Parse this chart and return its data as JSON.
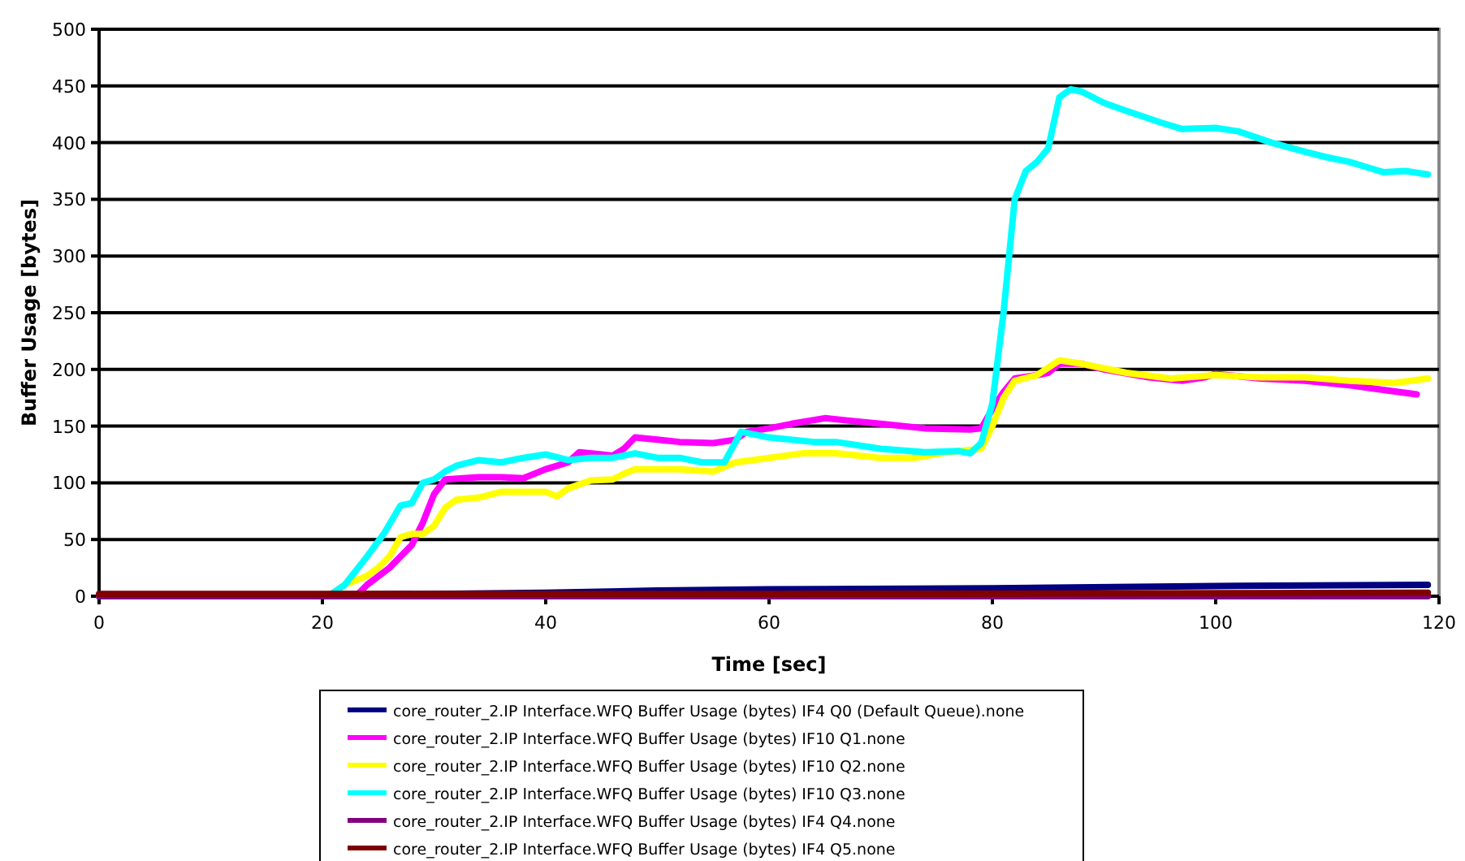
{
  "chart_data": {
    "type": "line",
    "xlabel": "Time [sec]",
    "ylabel": "Buffer Usage [bytes]",
    "xlim": [
      0,
      120
    ],
    "xticks": [
      0,
      20,
      40,
      60,
      80,
      100,
      120
    ],
    "ylim": [
      0,
      500
    ],
    "yticks": [
      0,
      50,
      100,
      150,
      200,
      250,
      300,
      350,
      400,
      450,
      500
    ],
    "grid": "y",
    "legend": "bottom",
    "line_style": "solid",
    "series": [
      {
        "name": "core_router_2.IP Interface.WFQ Buffer Usage (bytes) IF4 Q0 (Default Queue).none",
        "color": "#000080",
        "x": [
          0,
          30,
          40,
          50,
          60,
          80,
          100,
          119
        ],
        "values": [
          0,
          2,
          3,
          5,
          6,
          7,
          9,
          10
        ]
      },
      {
        "name": "core_router_2.IP Interface.WFQ Buffer Usage (bytes) IF10 Q1.none",
        "color": "#ff00ff",
        "x": [
          0,
          23,
          24,
          26,
          27,
          28,
          29,
          30,
          31,
          34,
          36,
          38,
          40,
          42,
          43,
          45,
          46,
          47,
          48,
          50,
          52,
          55,
          57,
          58,
          60,
          62,
          65,
          67,
          70,
          74,
          78,
          79,
          80,
          81,
          82,
          84,
          85,
          86,
          88,
          90,
          94,
          97,
          99,
          100,
          104,
          108,
          112,
          115,
          118
        ],
        "values": [
          0,
          0,
          10,
          25,
          35,
          45,
          65,
          90,
          103,
          105,
          105,
          104,
          112,
          118,
          127,
          125,
          124,
          130,
          140,
          138,
          136,
          135,
          138,
          145,
          148,
          152,
          157,
          155,
          152,
          148,
          147,
          148,
          165,
          180,
          192,
          195,
          197,
          205,
          205,
          200,
          193,
          190,
          193,
          196,
          192,
          190,
          186,
          182,
          178
        ]
      },
      {
        "name": "core_router_2.IP Interface.WFQ Buffer Usage (bytes) IF10 Q2.none",
        "color": "#ffff00",
        "x": [
          0,
          20.5,
          22,
          24,
          25,
          26,
          27,
          28,
          29,
          30,
          31,
          32,
          34,
          36,
          40,
          41,
          42,
          44,
          46,
          47,
          48,
          52,
          55,
          57,
          60,
          63,
          66,
          70,
          73,
          76,
          79,
          80,
          81,
          82,
          84,
          86,
          88,
          92,
          96,
          100,
          104,
          108,
          112,
          116,
          119
        ],
        "values": [
          0,
          0,
          10,
          18,
          25,
          35,
          52,
          55,
          55,
          62,
          78,
          85,
          87,
          92,
          92,
          88,
          95,
          102,
          103,
          108,
          112,
          112,
          110,
          118,
          122,
          126,
          126,
          122,
          122,
          127,
          130,
          150,
          175,
          190,
          195,
          208,
          205,
          197,
          192,
          195,
          193,
          193,
          190,
          188,
          192
        ]
      },
      {
        "name": "core_router_2.IP Interface.WFQ Buffer Usage (bytes) IF10 Q3.none",
        "color": "#00ffff",
        "x": [
          0,
          20.5,
          22,
          24,
          25.5,
          27,
          28,
          29,
          30,
          31,
          32,
          34,
          36,
          38,
          40,
          42,
          44,
          46,
          48,
          50,
          52,
          54,
          56,
          57.5,
          60,
          64,
          66,
          70,
          74,
          77,
          78,
          79,
          80,
          81,
          82,
          83,
          84,
          85,
          86,
          87,
          88,
          90,
          92,
          95,
          97,
          100,
          102,
          105,
          108,
          110,
          112,
          114,
          115,
          117,
          119
        ],
        "values": [
          0,
          0,
          10,
          35,
          55,
          80,
          82,
          100,
          103,
          110,
          115,
          120,
          118,
          122,
          125,
          120,
          122,
          122,
          126,
          122,
          122,
          118,
          118,
          145,
          140,
          136,
          136,
          130,
          127,
          128,
          126,
          135,
          170,
          250,
          350,
          375,
          383,
          395,
          440,
          447,
          445,
          435,
          428,
          418,
          412,
          413,
          410,
          400,
          392,
          387,
          383,
          377,
          374,
          375,
          372
        ]
      },
      {
        "name": "core_router_2.IP Interface.WFQ Buffer Usage (bytes) IF4 Q4.none",
        "color": "#800080",
        "x": [
          0,
          119
        ],
        "values": [
          0,
          0
        ]
      },
      {
        "name": "core_router_2.IP Interface.WFQ Buffer Usage (bytes) IF4 Q5.none",
        "color": "#800000",
        "x": [
          0,
          60,
          119
        ],
        "values": [
          2,
          2,
          3
        ]
      }
    ]
  }
}
